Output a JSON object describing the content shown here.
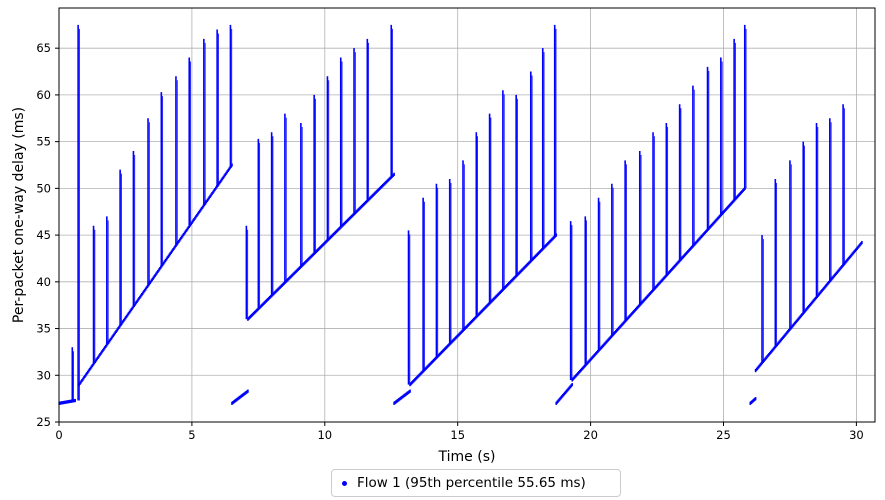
{
  "chart_data": {
    "type": "scatter",
    "title": "",
    "xlabel": "Time (s)",
    "ylabel": "Per-packet one-way delay (ms)",
    "xlim": [
      0,
      30.7
    ],
    "ylim": [
      25,
      69.3
    ],
    "x_ticks": [
      0,
      5,
      10,
      15,
      20,
      25,
      30
    ],
    "y_ticks": [
      25,
      30,
      35,
      40,
      45,
      50,
      55,
      60,
      65
    ],
    "grid": true,
    "legend": {
      "placement": "bottom-center",
      "entries": [
        "Flow 1 (95th percentile 55.65 ms)"
      ]
    },
    "series": [
      {
        "name": "Flow 1 (95th percentile 55.65 ms)",
        "color": "#0000ff",
        "marker": "dot",
        "segments": [
          {
            "x_start": 0.0,
            "x_end": 0.6,
            "base_start": 27.0,
            "base_end": 27.3,
            "spikes": [
              [
                0.5,
                33.0
              ],
              [
                0.72,
                67.5
              ]
            ]
          },
          {
            "x_start": 0.75,
            "x_end": 6.5,
            "base_start": 29.0,
            "base_end": 52.5,
            "spikes": [
              [
                1.3,
                46.0
              ],
              [
                1.8,
                47.0
              ],
              [
                2.3,
                52.0
              ],
              [
                2.8,
                54.0
              ],
              [
                3.35,
                57.5
              ],
              [
                3.85,
                60.3
              ],
              [
                4.4,
                62.0
              ],
              [
                4.9,
                64.0
              ],
              [
                5.45,
                66.0
              ],
              [
                5.95,
                67.0
              ],
              [
                6.45,
                67.5
              ]
            ]
          },
          {
            "x_start": 6.5,
            "x_end": 7.1,
            "base_start": 27.0,
            "base_end": 28.3,
            "spikes": []
          },
          {
            "x_start": 7.1,
            "x_end": 12.6,
            "base_start": 36.0,
            "base_end": 51.5,
            "spikes": [
              [
                7.05,
                46.0
              ],
              [
                7.5,
                55.3
              ],
              [
                8.0,
                56.0
              ],
              [
                8.5,
                58.0
              ],
              [
                9.1,
                57.0
              ],
              [
                9.6,
                60.0
              ],
              [
                10.1,
                62.0
              ],
              [
                10.6,
                64.0
              ],
              [
                11.1,
                65.0
              ],
              [
                11.6,
                66.0
              ],
              [
                12.5,
                67.5
              ]
            ]
          },
          {
            "x_start": 12.6,
            "x_end": 13.2,
            "base_start": 27.0,
            "base_end": 28.3,
            "spikes": []
          },
          {
            "x_start": 13.2,
            "x_end": 18.7,
            "base_start": 29.0,
            "base_end": 45.0,
            "spikes": [
              [
                13.15,
                45.5
              ],
              [
                13.7,
                49.0
              ],
              [
                14.2,
                50.5
              ],
              [
                14.7,
                51.0
              ],
              [
                15.2,
                53.0
              ],
              [
                15.7,
                56.0
              ],
              [
                16.2,
                58.0
              ],
              [
                16.7,
                60.5
              ],
              [
                17.2,
                60.0
              ],
              [
                17.75,
                62.5
              ],
              [
                18.2,
                65.0
              ],
              [
                18.65,
                67.5
              ]
            ]
          },
          {
            "x_start": 18.7,
            "x_end": 19.3,
            "base_start": 27.0,
            "base_end": 29.0,
            "spikes": []
          },
          {
            "x_start": 19.3,
            "x_end": 25.8,
            "base_start": 29.5,
            "base_end": 50.0,
            "spikes": [
              [
                19.25,
                46.5
              ],
              [
                19.8,
                47.0
              ],
              [
                20.3,
                49.0
              ],
              [
                20.8,
                50.5
              ],
              [
                21.3,
                53.0
              ],
              [
                21.85,
                54.0
              ],
              [
                22.35,
                56.0
              ],
              [
                22.85,
                57.0
              ],
              [
                23.35,
                59.0
              ],
              [
                23.85,
                61.0
              ],
              [
                24.4,
                63.0
              ],
              [
                24.9,
                64.0
              ],
              [
                25.4,
                66.0
              ],
              [
                25.8,
                67.5
              ]
            ]
          },
          {
            "x_start": 26.0,
            "x_end": 26.2,
            "base_start": 27.0,
            "base_end": 27.5,
            "spikes": []
          },
          {
            "x_start": 26.2,
            "x_end": 30.2,
            "base_start": 30.5,
            "base_end": 44.2,
            "spikes": [
              [
                26.45,
                45.0
              ],
              [
                26.95,
                51.0
              ],
              [
                27.5,
                53.0
              ],
              [
                28.0,
                55.0
              ],
              [
                28.5,
                57.0
              ],
              [
                29.0,
                57.5
              ],
              [
                29.5,
                59.0
              ]
            ]
          }
        ]
      }
    ]
  }
}
